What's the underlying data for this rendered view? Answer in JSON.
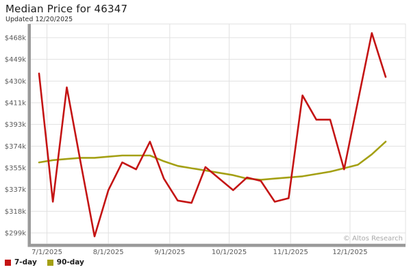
{
  "header": {
    "title": "Median Price for 46347",
    "subtitle": "Updated 12/20/2025"
  },
  "attribution": "© Altos Research",
  "legend": {
    "items": [
      {
        "label": "7-day",
        "color": "#c41414"
      },
      {
        "label": "90-day",
        "color": "#a4a014"
      }
    ]
  },
  "chart_data": {
    "type": "line",
    "title": "Median Price for 46347",
    "subtitle": "Updated 12/20/2025",
    "xlabel": "",
    "ylabel": "",
    "grid": true,
    "legend_position": "bottom-left",
    "units": "USD thousands",
    "x": [
      "2025-06-27",
      "2025-07-04",
      "2025-07-11",
      "2025-07-18",
      "2025-07-25",
      "2025-08-01",
      "2025-08-08",
      "2025-08-15",
      "2025-08-22",
      "2025-08-29",
      "2025-09-05",
      "2025-09-12",
      "2025-09-19",
      "2025-09-26",
      "2025-10-03",
      "2025-10-10",
      "2025-10-17",
      "2025-10-24",
      "2025-10-31",
      "2025-11-07",
      "2025-11-14",
      "2025-11-21",
      "2025-11-28",
      "2025-12-05",
      "2025-12-12",
      "2025-12-19"
    ],
    "series": [
      {
        "name": "7-day",
        "color": "#c41414",
        "values": [
          437,
          326,
          425,
          360,
          296,
          336,
          360,
          354,
          378,
          346,
          327,
          325,
          356,
          346,
          336,
          347,
          344,
          326,
          329,
          418,
          397,
          397,
          354,
          413,
          472,
          434
        ]
      },
      {
        "name": "90-day",
        "color": "#a4a014",
        "values": [
          360,
          362,
          363,
          364,
          364,
          365,
          366,
          366,
          366,
          361,
          357,
          355,
          353,
          351,
          349,
          346,
          345,
          346,
          347,
          348,
          350,
          352,
          355,
          358,
          367,
          378
        ]
      }
    ],
    "y_axis": {
      "tick_values": [
        299,
        318,
        337,
        355,
        374,
        393,
        411,
        430,
        449,
        468
      ],
      "tick_labels": [
        "$299k",
        "$318k",
        "$337k",
        "$355k",
        "$374k",
        "$393k",
        "$411k",
        "$430k",
        "$449k",
        "$468k"
      ]
    },
    "x_axis": {
      "tick_dates": [
        "2025-07-01",
        "2025-08-01",
        "2025-09-01",
        "2025-10-01",
        "2025-11-01",
        "2025-12-01"
      ],
      "tick_labels": [
        "7/1/2025",
        "8/1/2025",
        "9/1/2025",
        "10/1/2025",
        "11/1/2025",
        "12/1/2025"
      ]
    },
    "colors": {
      "grid": "#e1e1e1",
      "axis_bar": "#9a9a9a",
      "plot_border": "#e1e1e1",
      "background": "#ffffff"
    }
  }
}
